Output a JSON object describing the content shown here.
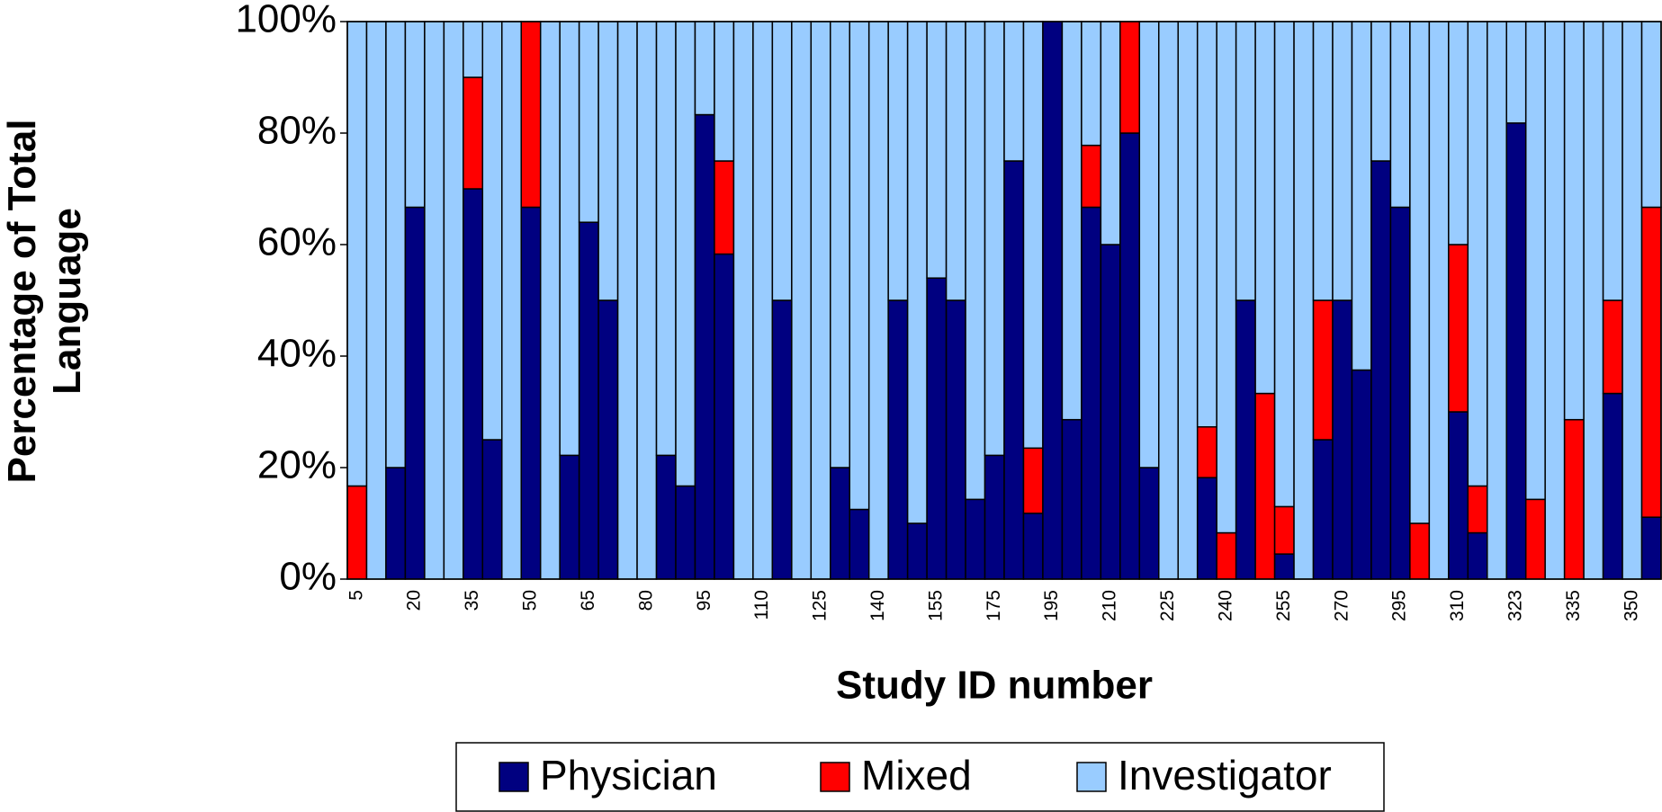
{
  "chart_data": {
    "type": "stacked_bar",
    "xlabel": "Study ID number",
    "ylabel": "Percentage of Total Language",
    "categories": [
      "5",
      null,
      null,
      "20",
      null,
      null,
      "35",
      null,
      null,
      "50",
      null,
      null,
      "65",
      null,
      null,
      "80",
      null,
      null,
      "95",
      null,
      null,
      "110",
      null,
      null,
      "125",
      null,
      null,
      "140",
      null,
      null,
      "155",
      null,
      null,
      "175",
      null,
      null,
      "195",
      null,
      null,
      "210",
      null,
      null,
      "225",
      null,
      null,
      "240",
      null,
      null,
      "255",
      null,
      null,
      "270",
      null,
      null,
      "295",
      null,
      null,
      "310",
      null,
      null,
      "323",
      null,
      null,
      "335",
      null,
      null,
      "350",
      null
    ],
    "series": [
      {
        "name": "Physician",
        "color": "#000080",
        "values": [
          0,
          0,
          20,
          66.7,
          0,
          0,
          70,
          25,
          0,
          66.7,
          0,
          22.2,
          64,
          50,
          0,
          0,
          22.2,
          16.7,
          83.3,
          58.3,
          0,
          0,
          50,
          0,
          0,
          20,
          12.5,
          0,
          50,
          10,
          54,
          50,
          14.3,
          22.2,
          75,
          11.8,
          100,
          28.6,
          66.7,
          60,
          80,
          20,
          0,
          0,
          18.2,
          0,
          50,
          0,
          4.5,
          0,
          25,
          50,
          37.5,
          75,
          66.7,
          0,
          0,
          30,
          8.3,
          0,
          81.8,
          0,
          0,
          0,
          0,
          33.3,
          0,
          11.1
        ]
      },
      {
        "name": "Mixed",
        "color": "#ff0000",
        "values": [
          16.7,
          0,
          0,
          0,
          0,
          0,
          20,
          0,
          0,
          33.3,
          0,
          0,
          0,
          0,
          0,
          0,
          0,
          0,
          0,
          16.7,
          0,
          0,
          0,
          0,
          0,
          0,
          0,
          0,
          0,
          0,
          0,
          0,
          0,
          0,
          0,
          11.7,
          0,
          0,
          11.1,
          0,
          20,
          0,
          0,
          0,
          9.1,
          8.3,
          0,
          33.3,
          8.5,
          0,
          25,
          0,
          0,
          0,
          0,
          10,
          0,
          30,
          8.4,
          0,
          0,
          14.3,
          0,
          28.6,
          0,
          16.7,
          0,
          55.6
        ]
      },
      {
        "name": "Investigator",
        "color": "#99ccff",
        "values": [
          83.3,
          100,
          80,
          33.3,
          100,
          100,
          10,
          75,
          100,
          0,
          100,
          77.8,
          36,
          50,
          100,
          100,
          77.8,
          83.3,
          16.7,
          25,
          100,
          100,
          50,
          100,
          100,
          80,
          87.5,
          100,
          50,
          90,
          46,
          50,
          85.7,
          77.8,
          25,
          76.5,
          0,
          71.4,
          22.2,
          40,
          0,
          80,
          100,
          100,
          72.7,
          91.7,
          50,
          66.7,
          87,
          100,
          50,
          50,
          62.5,
          25,
          33.3,
          90,
          100,
          40,
          83.3,
          100,
          18.2,
          85.7,
          100,
          71.4,
          100,
          50,
          100,
          33.3
        ]
      }
    ],
    "ylim": [
      0,
      100
    ],
    "yticks": [
      {
        "value": 0,
        "label": "0%"
      },
      {
        "value": 20,
        "label": "20%"
      },
      {
        "value": 40,
        "label": "40%"
      },
      {
        "value": 60,
        "label": "60%"
      },
      {
        "value": 80,
        "label": "80%"
      },
      {
        "value": 100,
        "label": "100%"
      }
    ],
    "legend": "bottom"
  }
}
